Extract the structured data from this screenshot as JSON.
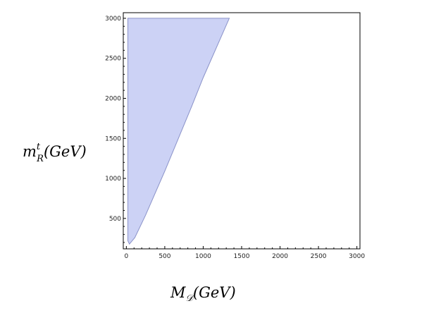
{
  "chart_data": {
    "type": "area",
    "title": "",
    "xlabel": {
      "base": "M",
      "sub": "𝒟",
      "rest": "(GeV)"
    },
    "ylabel": {
      "base": "m",
      "sup": "t",
      "sub": "R",
      "rest": "(GeV)"
    },
    "xlim": [
      -40,
      3040
    ],
    "ylim": [
      120,
      3070
    ],
    "xticks": [
      0,
      500,
      1000,
      1500,
      2000,
      2500,
      3000
    ],
    "yticks": [
      500,
      1000,
      1500,
      2000,
      2500,
      3000
    ],
    "grid": false,
    "fill_color": "#ccd2f5",
    "edge_color": "#8a92c8",
    "series": [
      {
        "region_boundary": [
          {
            "x": 20,
            "y": 3000
          },
          {
            "x": 1340,
            "y": 3000
          },
          {
            "x": 1000,
            "y": 2260
          },
          {
            "x": 850,
            "y": 1900
          },
          {
            "x": 500,
            "y": 1090
          },
          {
            "x": 250,
            "y": 540
          },
          {
            "x": 110,
            "y": 260
          },
          {
            "x": 40,
            "y": 180
          },
          {
            "x": 20,
            "y": 220
          },
          {
            "x": 20,
            "y": 3000
          }
        ]
      }
    ]
  }
}
